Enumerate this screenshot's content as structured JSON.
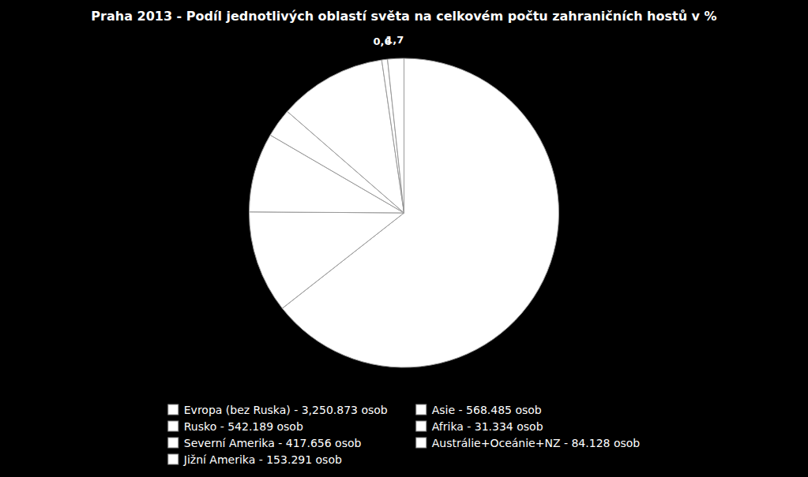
{
  "chart_data": {
    "type": "pie",
    "title": "Praha 2013 - Podíl jednotlivých oblastí světa na celkovém počtu zahraničních hostů v %",
    "categories": [
      "Evropa (bez Ruska) - 3,250.873 osob",
      "Rusko - 542.189 osob",
      "Severní Amerika - 417.656 osob",
      "Jižní Amerika - 153.291 osob",
      "Asie - 568.485 osob",
      "Afrika - 31.334 osob",
      "Austrálie+Oceánie+NZ - 84.128 osob"
    ],
    "values": [
      64.4,
      10.7,
      8.3,
      3.0,
      11.3,
      0.6,
      1.7
    ],
    "value_labels": [
      null,
      null,
      null,
      null,
      null,
      "0,6",
      "1,7"
    ],
    "color": "#ffffff",
    "legend": "bottom"
  }
}
